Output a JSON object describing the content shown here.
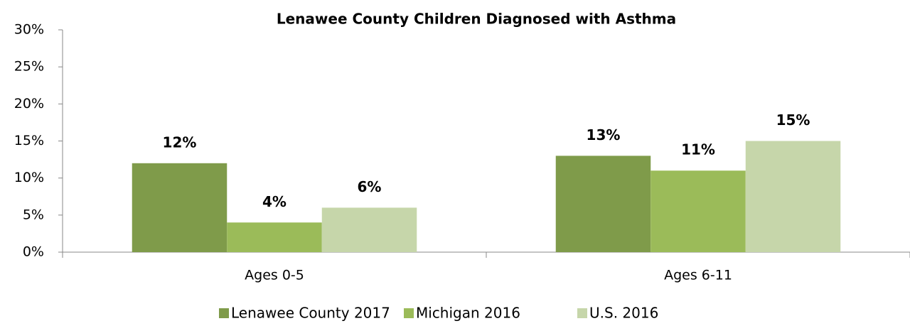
{
  "chart_data": {
    "type": "bar",
    "title": "Lenawee County Children Diagnosed with Asthma",
    "categories": [
      "Ages 0-5",
      "Ages 6-11"
    ],
    "series": [
      {
        "name": "Lenawee County 2017",
        "color": "#7f9b4a",
        "values": [
          12,
          13
        ],
        "value_labels": [
          "12%",
          "13%"
        ]
      },
      {
        "name": "Michigan 2016",
        "color": "#9bbb59",
        "values": [
          4,
          11
        ],
        "value_labels": [
          "4%",
          "11%"
        ]
      },
      {
        "name": "U.S. 2016",
        "color": "#c6d6aa",
        "values": [
          6,
          15
        ],
        "value_labels": [
          "6%",
          "15%"
        ]
      }
    ],
    "ylim": [
      0,
      30
    ],
    "yticks": [
      {
        "value": 0,
        "label": "0%"
      },
      {
        "value": 5,
        "label": "5%"
      },
      {
        "value": 10,
        "label": "10%"
      },
      {
        "value": 15,
        "label": "15%"
      },
      {
        "value": 20,
        "label": "20%"
      },
      {
        "value": 25,
        "label": "25%"
      },
      {
        "value": 30,
        "label": "30%"
      }
    ],
    "grid": false
  }
}
